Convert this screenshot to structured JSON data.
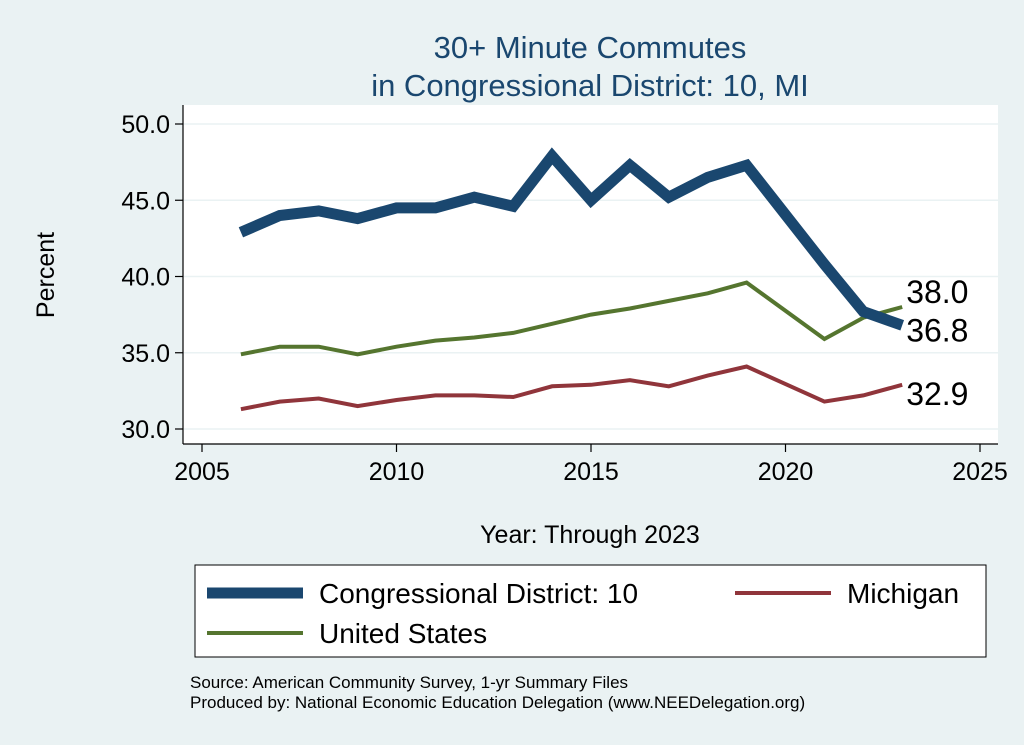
{
  "chart_data": {
    "type": "line",
    "title": [
      "30+ Minute Commutes",
      "in Congressional District:  10, MI"
    ],
    "xlabel": "Year: Through 2023",
    "ylabel": "Percent",
    "xlim": [
      2005,
      2025
    ],
    "ylim": [
      30,
      50
    ],
    "xticks": [
      2005,
      2010,
      2015,
      2020,
      2025
    ],
    "xtick_labels": [
      "2005",
      "2010",
      "2015",
      "2020",
      "2025"
    ],
    "yticks": [
      30,
      35,
      40,
      45,
      50
    ],
    "ytick_labels": [
      "30.0",
      "35.0",
      "40.0",
      "45.0",
      "50.0"
    ],
    "grid": true,
    "legend_position": "bottom",
    "x": [
      2006,
      2007,
      2008,
      2009,
      2010,
      2011,
      2012,
      2013,
      2014,
      2015,
      2016,
      2017,
      2018,
      2019,
      2021,
      2022,
      2023
    ],
    "series": [
      {
        "name": "Congressional District:  10",
        "color": "#1a476f",
        "values": [
          42.9,
          44.0,
          44.3,
          43.8,
          44.5,
          44.5,
          45.2,
          44.6,
          47.9,
          45.0,
          47.3,
          45.2,
          46.5,
          47.3,
          40.8,
          37.7,
          36.8
        ],
        "end_label": "36.8"
      },
      {
        "name": "Michigan",
        "color": "#90353b",
        "values": [
          31.3,
          31.8,
          32.0,
          31.5,
          31.9,
          32.2,
          32.2,
          32.1,
          32.8,
          32.9,
          33.2,
          32.8,
          33.5,
          34.1,
          31.8,
          32.2,
          32.9
        ],
        "end_label": "32.9"
      },
      {
        "name": "United States",
        "color": "#55752f",
        "values": [
          34.9,
          35.4,
          35.4,
          34.9,
          35.4,
          35.8,
          36.0,
          36.3,
          36.9,
          37.5,
          37.9,
          38.4,
          38.9,
          39.6,
          35.9,
          37.3,
          38.0
        ],
        "end_label": "38.0"
      }
    ],
    "notes": [
      "Source: American Community Survey, 1-yr Summary Files",
      "Produced by: National Economic Education Delegation (www.NEEDelegation.org)"
    ]
  }
}
